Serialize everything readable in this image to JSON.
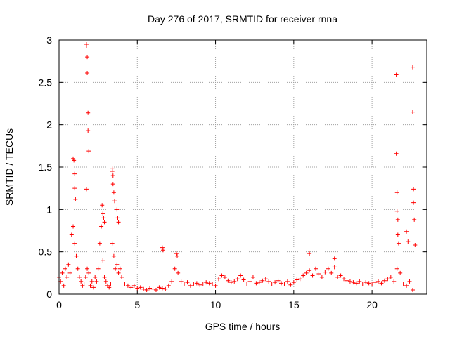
{
  "chart_data": {
    "type": "scatter",
    "title": "Day 276 of 2017, SRMTID for receiver rnna",
    "xlabel": "GPS time / hours",
    "ylabel": "SRMTID / TECUs",
    "xlim": [
      0,
      23.5
    ],
    "ylim": [
      0,
      3
    ],
    "x_ticks": [
      0,
      5,
      10,
      15,
      20
    ],
    "x_tick_labels": [
      "0",
      "5",
      "10",
      "15",
      "20"
    ],
    "y_ticks": [
      0,
      0.5,
      1,
      1.5,
      2,
      2.5,
      3
    ],
    "y_tick_labels": [
      "0",
      "0.5",
      "1",
      "1.5",
      "2",
      "2.5",
      "3"
    ],
    "grid": true,
    "marker": "+",
    "color": "#ff0000",
    "series": [
      {
        "name": "SRMTID",
        "x": [
          0.0,
          0.1,
          0.2,
          0.3,
          0.4,
          0.5,
          0.6,
          0.7,
          0.8,
          0.9,
          1.0,
          1.1,
          1.2,
          1.3,
          1.4,
          1.5,
          1.6,
          1.7,
          1.8,
          1.9,
          2.0,
          2.1,
          2.2,
          2.3,
          2.4,
          2.5,
          2.6,
          2.7,
          2.8,
          2.9,
          3.0,
          3.1,
          3.2,
          3.3,
          3.4,
          3.5,
          3.6,
          3.7,
          3.8,
          3.9,
          4.0,
          4.2,
          4.4,
          4.6,
          4.8,
          5.0,
          5.2,
          5.4,
          5.6,
          5.8,
          6.0,
          6.2,
          6.4,
          6.6,
          6.8,
          7.0,
          7.2,
          7.4,
          7.6,
          7.8,
          8.0,
          8.2,
          8.4,
          8.6,
          8.8,
          9.0,
          9.2,
          9.4,
          9.6,
          9.8,
          10.0,
          10.2,
          10.4,
          10.6,
          10.8,
          11.0,
          11.2,
          11.4,
          11.6,
          11.8,
          12.0,
          12.2,
          12.4,
          12.6,
          12.8,
          13.0,
          13.2,
          13.4,
          13.6,
          13.8,
          14.0,
          14.2,
          14.4,
          14.6,
          14.8,
          15.0,
          15.2,
          15.4,
          15.6,
          15.8,
          16.0,
          16.2,
          16.4,
          16.6,
          16.8,
          17.0,
          17.2,
          17.4,
          17.6,
          17.8,
          18.0,
          18.2,
          18.4,
          18.6,
          18.8,
          19.0,
          19.2,
          19.4,
          19.6,
          19.8,
          20.0,
          20.2,
          20.4,
          20.6,
          20.8,
          21.0,
          21.2,
          21.4,
          21.6,
          21.8,
          22.0,
          22.2,
          22.4,
          22.6,
          0.9,
          0.95,
          1.0,
          1.0,
          1.05,
          1.75,
          1.75,
          1.8,
          1.8,
          1.85,
          1.85,
          1.9,
          1.75,
          2.75,
          2.8,
          2.85,
          2.9,
          3.4,
          3.4,
          3.45,
          3.45,
          3.5,
          3.55,
          3.7,
          3.75,
          3.8,
          6.6,
          6.65,
          7.5,
          7.55,
          16.0,
          17.6,
          21.55,
          21.55,
          21.6,
          21.6,
          21.65,
          21.65,
          21.7,
          22.2,
          22.3,
          22.6,
          22.6,
          22.65,
          22.65,
          22.7,
          22.75
        ],
        "y": [
          0.2,
          0.15,
          0.25,
          0.1,
          0.3,
          0.2,
          0.35,
          0.25,
          0.7,
          0.8,
          0.6,
          0.45,
          0.3,
          0.2,
          0.15,
          0.1,
          0.12,
          0.2,
          0.3,
          0.25,
          0.1,
          0.15,
          0.08,
          0.2,
          0.15,
          0.3,
          0.6,
          0.8,
          0.4,
          0.2,
          0.15,
          0.1,
          0.08,
          0.12,
          0.6,
          0.45,
          0.3,
          0.35,
          0.25,
          0.3,
          0.2,
          0.12,
          0.1,
          0.08,
          0.1,
          0.07,
          0.08,
          0.06,
          0.05,
          0.07,
          0.06,
          0.05,
          0.08,
          0.07,
          0.06,
          0.1,
          0.15,
          0.3,
          0.25,
          0.15,
          0.12,
          0.14,
          0.1,
          0.12,
          0.13,
          0.11,
          0.12,
          0.14,
          0.13,
          0.12,
          0.1,
          0.18,
          0.22,
          0.2,
          0.16,
          0.14,
          0.15,
          0.18,
          0.22,
          0.17,
          0.12,
          0.15,
          0.2,
          0.13,
          0.14,
          0.16,
          0.18,
          0.15,
          0.12,
          0.14,
          0.16,
          0.13,
          0.12,
          0.15,
          0.11,
          0.14,
          0.17,
          0.18,
          0.22,
          0.25,
          0.28,
          0.22,
          0.3,
          0.24,
          0.2,
          0.26,
          0.3,
          0.25,
          0.32,
          0.2,
          0.22,
          0.18,
          0.16,
          0.15,
          0.14,
          0.13,
          0.15,
          0.12,
          0.14,
          0.13,
          0.12,
          0.14,
          0.15,
          0.13,
          0.16,
          0.18,
          0.2,
          0.15,
          0.3,
          0.25,
          0.12,
          0.1,
          0.15,
          0.05,
          1.6,
          1.58,
          1.42,
          1.25,
          1.12,
          2.95,
          2.93,
          2.8,
          2.61,
          2.14,
          1.93,
          1.69,
          1.24,
          1.05,
          0.95,
          0.9,
          0.85,
          1.48,
          1.45,
          1.4,
          1.3,
          1.2,
          1.1,
          1.0,
          0.9,
          0.85,
          0.55,
          0.52,
          0.48,
          0.45,
          0.48,
          0.42,
          2.59,
          1.66,
          1.2,
          0.98,
          0.88,
          0.7,
          0.6,
          0.74,
          0.62,
          2.68,
          2.15,
          1.24,
          1.08,
          0.88,
          0.58
        ]
      }
    ]
  }
}
